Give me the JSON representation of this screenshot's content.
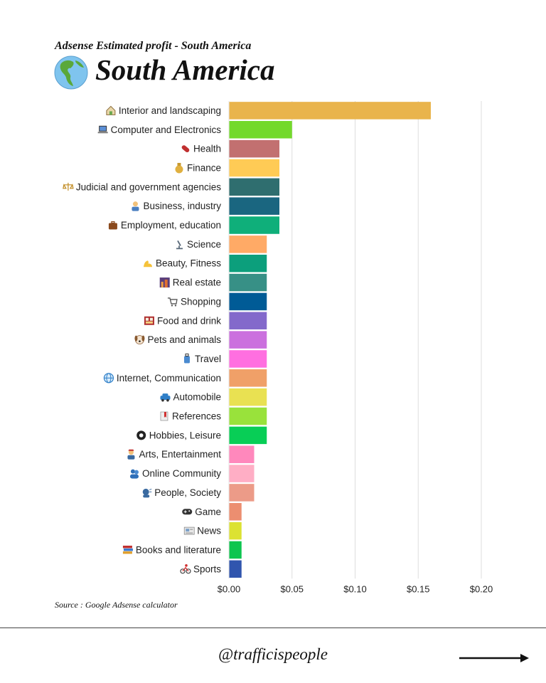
{
  "header": {
    "subtitle": "Adsense Estimated profit - South America",
    "title": "South America",
    "title_icon": "globe-americas-icon"
  },
  "chart_data": {
    "type": "bar",
    "orientation": "horizontal",
    "categories": [
      "Interior and landscaping",
      "Computer and Electronics",
      "Health",
      "Finance",
      "Judicial and government agencies",
      "Business, industry",
      "Employment, education",
      "Science",
      "Beauty, Fitness",
      "Real estate",
      "Shopping",
      "Food and drink",
      "Pets and animals",
      "Travel",
      "Internet, Communication",
      "Automobile",
      "References",
      "Hobbies, Leisure",
      "Arts, Entertainment",
      "Online Community",
      "People, Society",
      "Game",
      "News",
      "Books and literature",
      "Sports"
    ],
    "category_icons": [
      "house-garden-icon",
      "laptop-icon",
      "pill-icon",
      "money-bag-icon",
      "balance-scale-icon",
      "office-worker-icon",
      "briefcase-icon",
      "microscope-icon",
      "flexed-biceps-icon",
      "cityscape-icon",
      "shopping-cart-icon",
      "bento-box-icon",
      "dog-face-icon",
      "luggage-icon",
      "globe-meridians-icon",
      "car-icon",
      "bookmark-icon",
      "pool-8-ball-icon",
      "artist-icon",
      "people-hugging-icon",
      "speaking-heads-icon",
      "game-controller-icon",
      "newspaper-icon",
      "books-icon",
      "cyclist-icon"
    ],
    "values": [
      0.16,
      0.05,
      0.04,
      0.04,
      0.04,
      0.04,
      0.04,
      0.03,
      0.03,
      0.03,
      0.03,
      0.03,
      0.03,
      0.03,
      0.03,
      0.03,
      0.03,
      0.03,
      0.02,
      0.02,
      0.02,
      0.01,
      0.01,
      0.01,
      0.01
    ],
    "colors": [
      "#E9B44C",
      "#73D92B",
      "#C27070",
      "#FFCB55",
      "#2F6E6F",
      "#1A6680",
      "#0FAF7A",
      "#FFAA66",
      "#0C9F7C",
      "#379086",
      "#005B96",
      "#8369CB",
      "#CB70DE",
      "#FF6FE0",
      "#F0A068",
      "#E9E152",
      "#99E23B",
      "#08CE56",
      "#FF88BC",
      "#FFAEC5",
      "#EC9B88",
      "#EC8E70",
      "#DCE232",
      "#0DC54F",
      "#3055AE"
    ],
    "xlim": [
      0,
      0.2
    ],
    "ticks": [
      0,
      0.05,
      0.1,
      0.15,
      0.2
    ],
    "tick_labels": [
      "$0.00",
      "$0.05",
      "$0.10",
      "$0.15",
      "$0.20"
    ],
    "grid": true,
    "xlabel": "",
    "ylabel": ""
  },
  "footer": {
    "source": "Source : Google Adsense calculator",
    "handle": "@trafficispeople",
    "arrow_icon": "right-arrow-icon"
  }
}
